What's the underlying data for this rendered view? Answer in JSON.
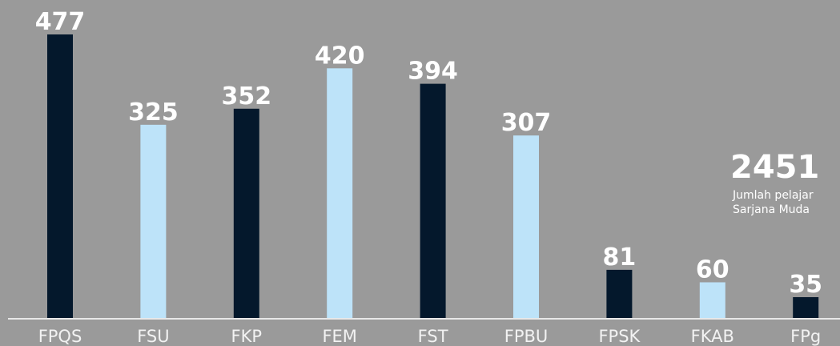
{
  "chart_data": {
    "type": "bar",
    "categories": [
      "FPQS",
      "FSU",
      "FKP",
      "FEM",
      "FST",
      "FPBU",
      "FPSK",
      "FKAB",
      "FPg"
    ],
    "values": [
      477,
      325,
      352,
      420,
      394,
      307,
      81,
      60,
      35
    ],
    "colors": [
      "#04182c",
      "#bde3f9",
      "#04182c",
      "#bde3f9",
      "#04182c",
      "#bde3f9",
      "#04182c",
      "#bde3f9",
      "#04182c"
    ],
    "annotation": {
      "value": 2451,
      "label": [
        "Jumlah pelajar",
        "Sarjana Muda"
      ]
    }
  }
}
